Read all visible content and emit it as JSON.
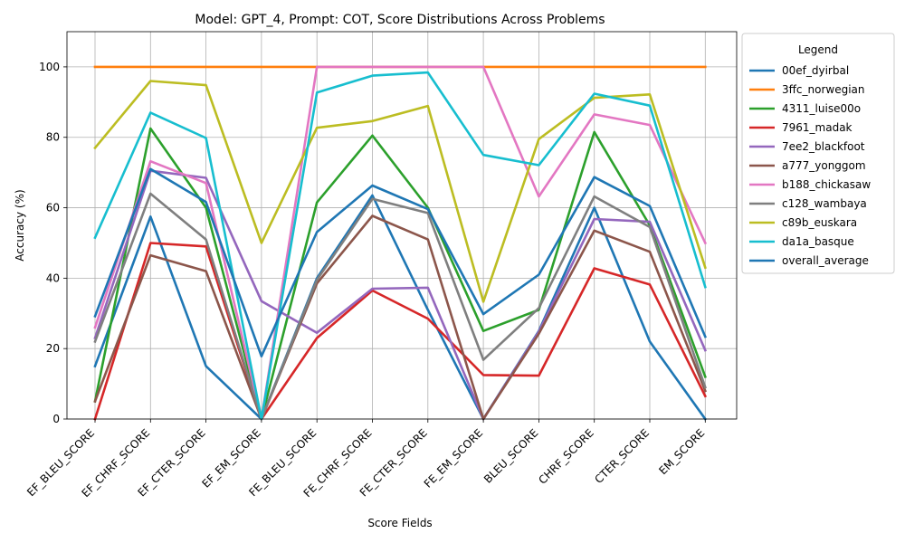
{
  "chart_data": {
    "type": "line",
    "title": "Model: GPT_4, Prompt: COT, Score Distributions Across Problems",
    "xlabel": "Score Fields",
    "ylabel": "Accuracy (%)",
    "ylim": [
      0,
      110
    ],
    "yticks": [
      0,
      20,
      40,
      60,
      80,
      100
    ],
    "grid": true,
    "legend_title": "Legend",
    "legend_position": "outside-right",
    "categories": [
      "EF_BLEU_SCORE",
      "EF_CHRF_SCORE",
      "EF_CTER_SCORE",
      "EF_EM_SCORE",
      "FE_BLEU_SCORE",
      "FE_CHRF_SCORE",
      "FE_CTER_SCORE",
      "FE_EM_SCORE",
      "BLEU_SCORE",
      "CHRF_SCORE",
      "CTER_SCORE",
      "EM_SCORE"
    ],
    "series": [
      {
        "name": "00ef_dyirbal",
        "color": "#1f77b4",
        "values": [
          15,
          57.5,
          15,
          0,
          40,
          63.5,
          31,
          0,
          25,
          60,
          22,
          0
        ]
      },
      {
        "name": "3ffc_norwegian",
        "color": "#ff7f0e",
        "values": [
          100,
          100,
          100,
          100,
          100,
          100,
          100,
          100,
          100,
          100,
          100,
          100
        ]
      },
      {
        "name": "4311_luise00o",
        "color": "#2ca02c",
        "values": [
          5,
          82.5,
          60,
          0,
          61.5,
          80.5,
          60,
          25,
          31,
          81.5,
          55,
          12
        ]
      },
      {
        "name": "7961_madak",
        "color": "#d62728",
        "values": [
          0,
          50,
          49,
          0,
          23,
          36.5,
          28.5,
          12.5,
          12.3,
          42.8,
          38.2,
          6.5
        ]
      },
      {
        "name": "7ee2_blackfoot",
        "color": "#9467bd",
        "values": [
          23,
          70.5,
          68.5,
          33.5,
          24.5,
          37,
          37.3,
          0,
          24.8,
          56.8,
          56,
          19.5
        ]
      },
      {
        "name": "a777_yonggom",
        "color": "#8c564b",
        "values": [
          5,
          46.5,
          42,
          0,
          38.5,
          57.7,
          51,
          0,
          24.2,
          53.5,
          47.5,
          8
        ]
      },
      {
        "name": "b188_chickasaw",
        "color": "#e377c2",
        "values": [
          26,
          73.2,
          67,
          0,
          100,
          100,
          100,
          100,
          63.2,
          86.5,
          83.5,
          50
        ]
      },
      {
        "name": "c128_wambaya",
        "color": "#7f7f7f",
        "values": [
          22,
          64,
          51,
          0,
          39.5,
          62.5,
          58.5,
          16.8,
          31.5,
          63.2,
          54.5,
          9
        ]
      },
      {
        "name": "c89b_euskara",
        "color": "#bcbd22",
        "values": [
          77,
          96,
          94.8,
          50,
          82.7,
          84.6,
          88.9,
          33.3,
          79.5,
          91.2,
          92.2,
          43
        ]
      },
      {
        "name": "da1a_basque",
        "color": "#17becf",
        "values": [
          51.5,
          87,
          79.8,
          0,
          92.7,
          97.5,
          98.4,
          75,
          72.1,
          92.4,
          89,
          37.5
        ]
      },
      {
        "name": "overall_average",
        "color": "#1f77b4",
        "values": [
          29.2,
          71,
          61.6,
          17.8,
          53.1,
          66.3,
          59.6,
          29.8,
          41,
          68.7,
          60.5,
          23.4
        ]
      }
    ]
  }
}
